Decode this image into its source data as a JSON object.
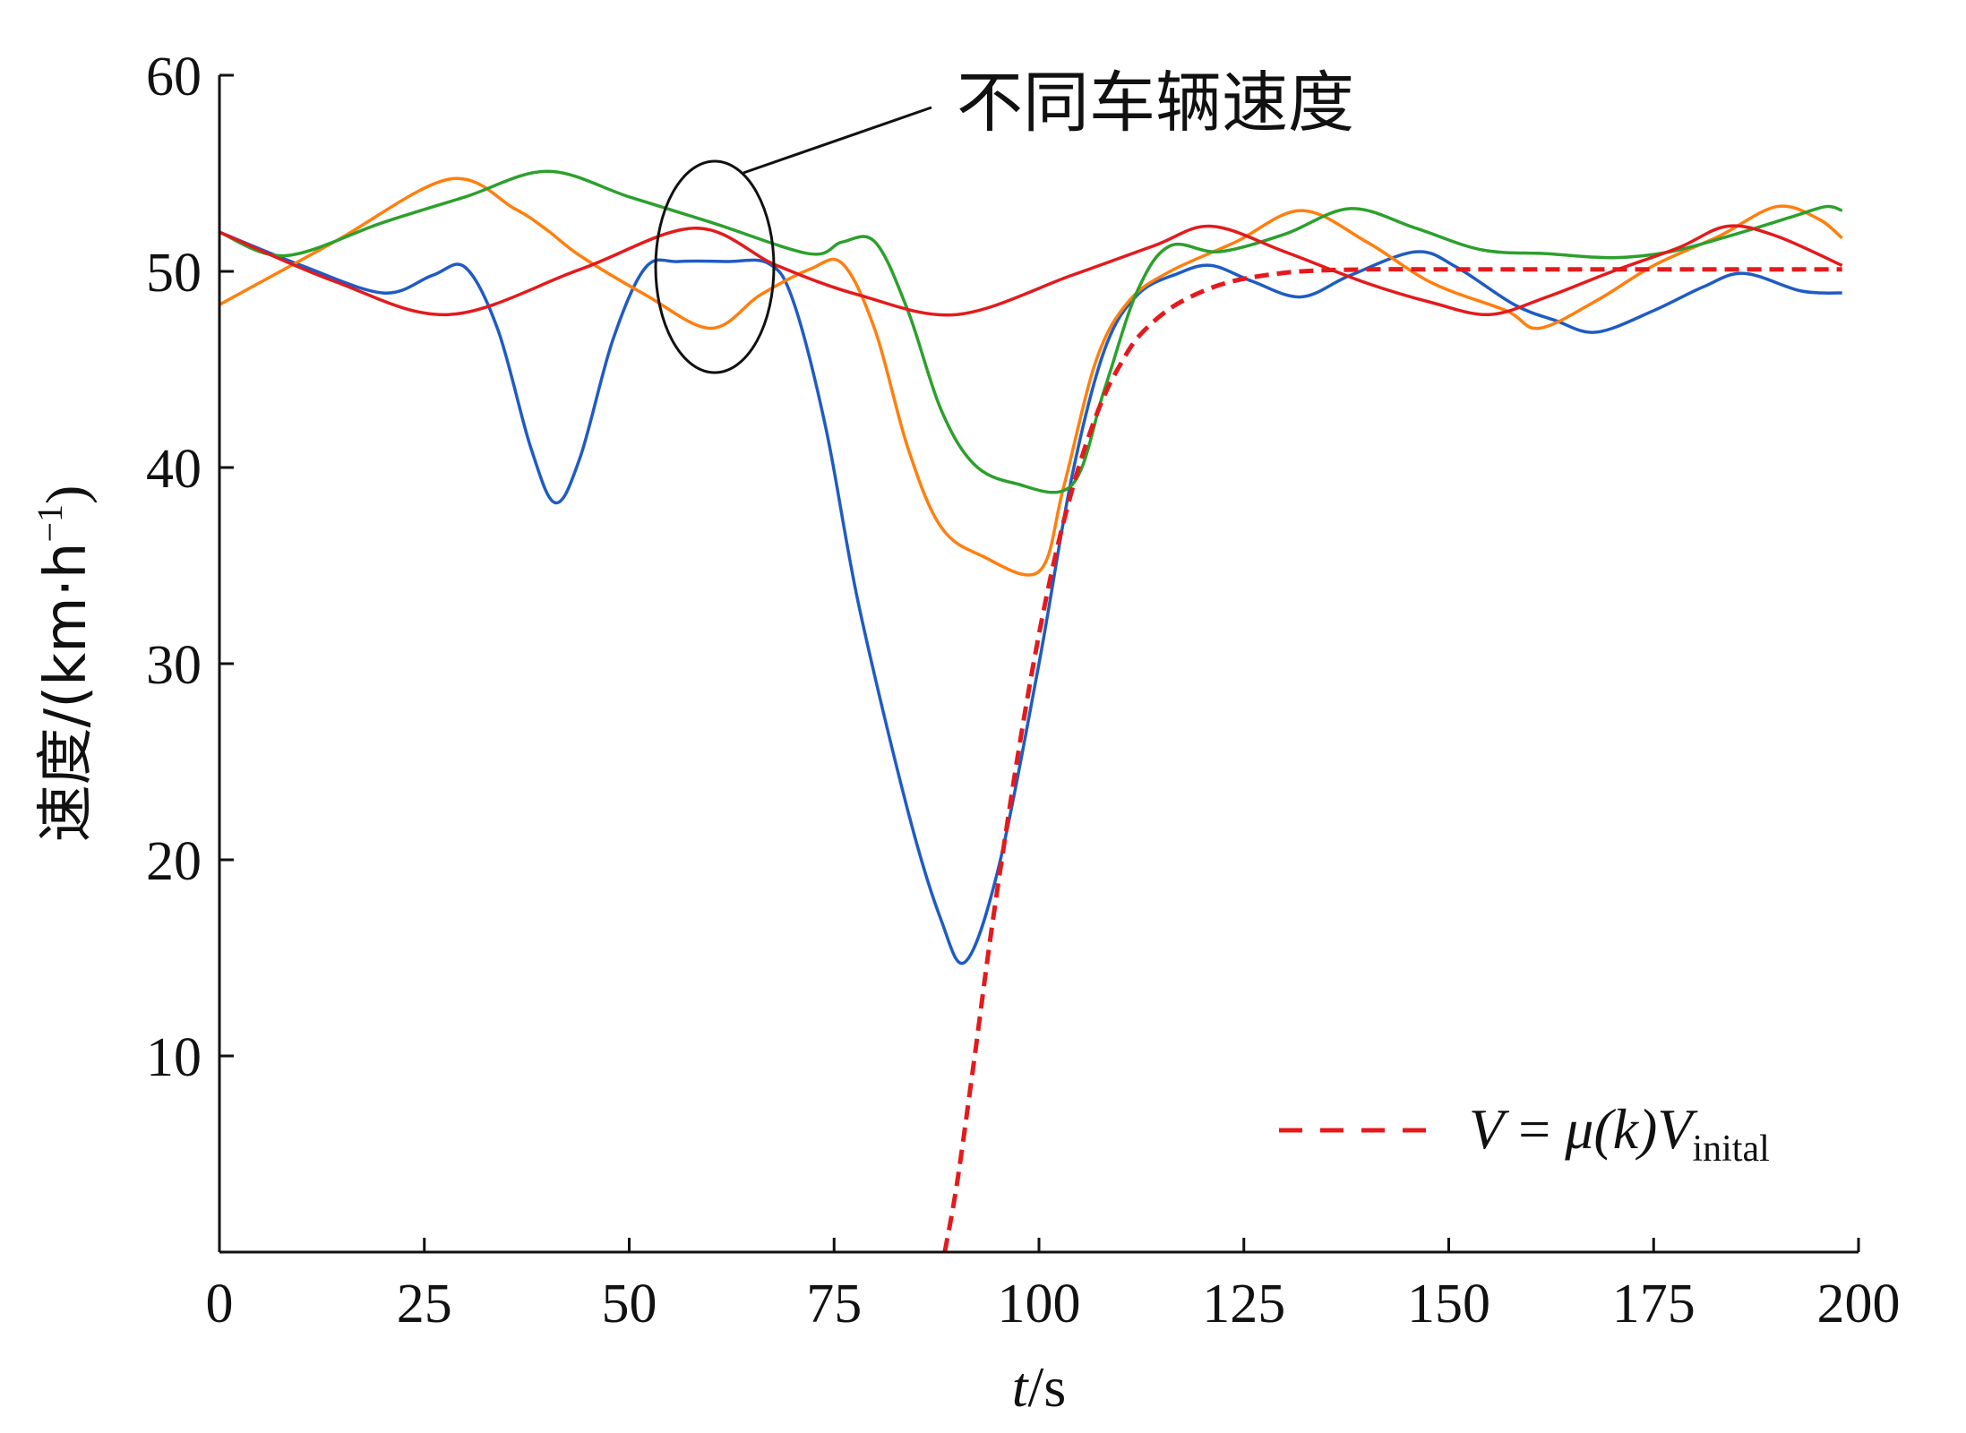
{
  "chart_data": {
    "type": "line",
    "title": "",
    "xlabel_italic": "t",
    "xlabel_unit": "/s",
    "ylabel": "速度/(km·h",
    "ylabel_sup": "−1",
    "ylabel_close": ")",
    "xlim": [
      0,
      200
    ],
    "ylim": [
      0,
      60
    ],
    "xticks": [
      0,
      25,
      50,
      75,
      100,
      125,
      150,
      175,
      200
    ],
    "yticks": [
      10,
      20,
      30,
      40,
      50,
      60
    ],
    "xtick_labels": [
      "0",
      "25",
      "50",
      "75",
      "100",
      "125",
      "150",
      "175",
      "200"
    ],
    "ytick_labels": [
      "10",
      "20",
      "30",
      "40",
      "50",
      "60"
    ],
    "grid": false,
    "annotation": {
      "text": "不同车辆速度",
      "target_x": 60,
      "target_y": 50.3
    },
    "legend": {
      "placement": "bottom-right",
      "entries": [
        {
          "series": "model",
          "label_V": "V",
          "label_eq": " = ",
          "label_mu": "μ",
          "label_k": "(k)",
          "label_V2": "V",
          "label_sub": "inital"
        }
      ]
    },
    "series": [
      {
        "color": "#1f5bc4",
        "dashed": false,
        "points": [
          [
            0,
            52
          ],
          [
            10,
            50.3
          ],
          [
            20,
            48.9
          ],
          [
            26,
            49.8
          ],
          [
            30,
            50.2
          ],
          [
            34,
            47
          ],
          [
            38,
            41
          ],
          [
            41,
            38.2
          ],
          [
            44,
            40.5
          ],
          [
            48,
            46.5
          ],
          [
            52,
            50.2
          ],
          [
            56,
            50.5
          ],
          [
            62,
            50.5
          ],
          [
            67,
            50.4
          ],
          [
            70,
            48.5
          ],
          [
            74,
            42
          ],
          [
            78,
            33
          ],
          [
            84,
            22.5
          ],
          [
            88,
            17
          ],
          [
            91,
            14.8
          ],
          [
            95,
            19.5
          ],
          [
            100,
            30
          ],
          [
            104,
            39.5
          ],
          [
            108,
            46
          ],
          [
            112,
            48.8
          ],
          [
            117,
            49.9
          ],
          [
            121,
            50.3
          ],
          [
            126,
            49.5
          ],
          [
            132,
            48.7
          ],
          [
            138,
            49.8
          ],
          [
            146,
            51
          ],
          [
            151,
            50.2
          ],
          [
            158,
            48.3
          ],
          [
            163,
            47.5
          ],
          [
            168,
            46.9
          ],
          [
            175,
            48
          ],
          [
            181,
            49.2
          ],
          [
            186,
            49.9
          ],
          [
            193,
            49
          ],
          [
            198,
            48.9
          ]
        ]
      },
      {
        "color": "#ff7f0e",
        "dashed": false,
        "points": [
          [
            0,
            48.3
          ],
          [
            14,
            51.5
          ],
          [
            28,
            54.7
          ],
          [
            36,
            53.2
          ],
          [
            40,
            52.1
          ],
          [
            44,
            50.8
          ],
          [
            52,
            48.8
          ],
          [
            60,
            47.1
          ],
          [
            66,
            48.8
          ],
          [
            72,
            50.1
          ],
          [
            76,
            50.4
          ],
          [
            80,
            47
          ],
          [
            84,
            41
          ],
          [
            88,
            37
          ],
          [
            93,
            35.5
          ],
          [
            100,
            34.7
          ],
          [
            103,
            39
          ],
          [
            107,
            45.5
          ],
          [
            111,
            48.5
          ],
          [
            116,
            50
          ],
          [
            124,
            51.5
          ],
          [
            132,
            53.1
          ],
          [
            140,
            51.5
          ],
          [
            148,
            49.4
          ],
          [
            157,
            48
          ],
          [
            161,
            47.1
          ],
          [
            168,
            48.5
          ],
          [
            175,
            50.3
          ],
          [
            183,
            51.8
          ],
          [
            190,
            53.3
          ],
          [
            195,
            52.7
          ],
          [
            198,
            51.7
          ]
        ]
      },
      {
        "color": "#2ca02c",
        "dashed": false,
        "points": [
          [
            0,
            52
          ],
          [
            8,
            50.8
          ],
          [
            20,
            52.5
          ],
          [
            30,
            53.8
          ],
          [
            40,
            55.1
          ],
          [
            50,
            53.8
          ],
          [
            60,
            52.5
          ],
          [
            72,
            50.9
          ],
          [
            76,
            51.5
          ],
          [
            80,
            51.5
          ],
          [
            84,
            48
          ],
          [
            88,
            43
          ],
          [
            92,
            40.2
          ],
          [
            97,
            39.2
          ],
          [
            104,
            39.1
          ],
          [
            108,
            44
          ],
          [
            112,
            49
          ],
          [
            116,
            51.3
          ],
          [
            122,
            51
          ],
          [
            130,
            51.9
          ],
          [
            138,
            53.2
          ],
          [
            146,
            52.2
          ],
          [
            154,
            51.1
          ],
          [
            162,
            50.9
          ],
          [
            170,
            50.7
          ],
          [
            177,
            51
          ],
          [
            185,
            51.9
          ],
          [
            192,
            52.8
          ],
          [
            196,
            53.3
          ],
          [
            198,
            53.1
          ]
        ]
      },
      {
        "color": "#e41a1c",
        "dashed": false,
        "points": [
          [
            0,
            52
          ],
          [
            14,
            49.5
          ],
          [
            28,
            47.8
          ],
          [
            44,
            50.1
          ],
          [
            58,
            52.2
          ],
          [
            68,
            50.3
          ],
          [
            78,
            48.8
          ],
          [
            90,
            47.8
          ],
          [
            104,
            49.8
          ],
          [
            114,
            51.3
          ],
          [
            121,
            52.3
          ],
          [
            130,
            51
          ],
          [
            140,
            49.4
          ],
          [
            148,
            48.4
          ],
          [
            155,
            47.8
          ],
          [
            162,
            48.7
          ],
          [
            170,
            50
          ],
          [
            178,
            51.2
          ],
          [
            184,
            52.3
          ],
          [
            190,
            51.8
          ],
          [
            198,
            50.3
          ]
        ]
      },
      {
        "color": "#e41a1c",
        "dashed": true,
        "points": [
          [
            88.5,
            0
          ],
          [
            90,
            3.5
          ],
          [
            92,
            9.5
          ],
          [
            94,
            15.8
          ],
          [
            96,
            21.5
          ],
          [
            98,
            26.8
          ],
          [
            100,
            31.5
          ],
          [
            102,
            35.5
          ],
          [
            104,
            38.8
          ],
          [
            106,
            41.5
          ],
          [
            108,
            43.7
          ],
          [
            110,
            45.3
          ],
          [
            112,
            46.6
          ],
          [
            115,
            47.8
          ],
          [
            118,
            48.6
          ],
          [
            122,
            49.3
          ],
          [
            126,
            49.7
          ],
          [
            132,
            50
          ],
          [
            140,
            50.1
          ],
          [
            150,
            50.1
          ],
          [
            160,
            50.1
          ],
          [
            175,
            50.1
          ],
          [
            190,
            50.1
          ],
          [
            198,
            50.1
          ]
        ]
      }
    ]
  }
}
